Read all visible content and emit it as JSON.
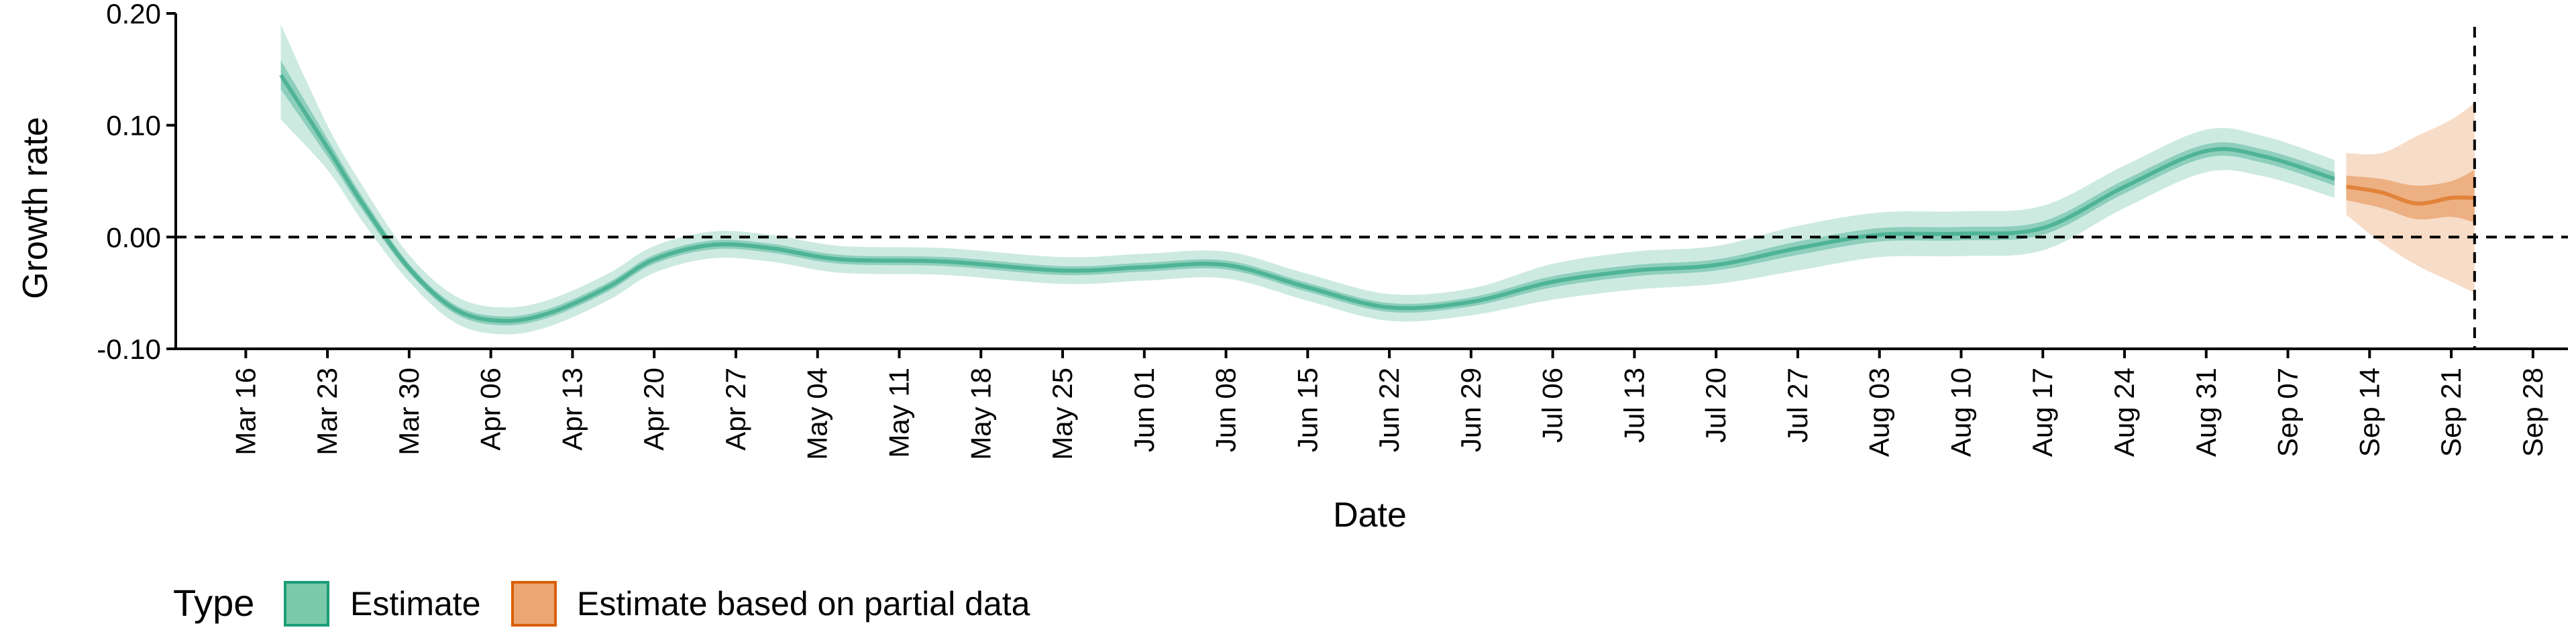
{
  "chart_data": {
    "type": "area",
    "title": "",
    "xlabel": "Date",
    "ylabel": "Growth rate",
    "ylim": [
      -0.1,
      0.2
    ],
    "yticks": [
      -0.1,
      0.0,
      0.1,
      0.2
    ],
    "ytick_labels": [
      "-0.10",
      "0.00",
      "0.10",
      "0.20"
    ],
    "xlim": [
      "2020-03-10",
      "2020-10-01"
    ],
    "xticks": [
      "2020-03-16",
      "2020-03-23",
      "2020-03-30",
      "2020-04-06",
      "2020-04-13",
      "2020-04-20",
      "2020-04-27",
      "2020-05-04",
      "2020-05-11",
      "2020-05-18",
      "2020-05-25",
      "2020-06-01",
      "2020-06-08",
      "2020-06-15",
      "2020-06-22",
      "2020-06-29",
      "2020-07-06",
      "2020-07-13",
      "2020-07-20",
      "2020-07-27",
      "2020-08-03",
      "2020-08-10",
      "2020-08-17",
      "2020-08-24",
      "2020-08-31",
      "2020-09-07",
      "2020-09-14",
      "2020-09-21",
      "2020-09-28"
    ],
    "xtick_labels": [
      "Mar 16",
      "Mar 23",
      "Mar 30",
      "Apr 06",
      "Apr 13",
      "Apr 20",
      "Apr 27",
      "May 04",
      "May 11",
      "May 18",
      "May 25",
      "Jun 01",
      "Jun 08",
      "Jun 15",
      "Jun 22",
      "Jun 29",
      "Jul 06",
      "Jul 13",
      "Jul 20",
      "Jul 27",
      "Aug 03",
      "Aug 10",
      "Aug 17",
      "Aug 24",
      "Aug 31",
      "Sep 07",
      "Sep 14",
      "Sep 21",
      "Sep 28"
    ],
    "reference_lines": {
      "y": 0.0,
      "x": "2020-09-23"
    },
    "grid": false,
    "legend": {
      "title": "Type",
      "position": "bottom-left",
      "entries": [
        {
          "label": "Estimate",
          "color": "#1b9e77"
        },
        {
          "label": "Estimate based on partial data",
          "color": "#d95f02"
        }
      ]
    },
    "series": [
      {
        "name": "Estimate",
        "color": "#1b9e77",
        "points": [
          {
            "date": "2020-03-19",
            "mid": 0.145,
            "lo50": 0.132,
            "hi50": 0.158,
            "lo90": 0.105,
            "hi90": 0.19
          },
          {
            "date": "2020-03-23",
            "mid": 0.08,
            "lo50": 0.072,
            "hi50": 0.088,
            "lo90": 0.06,
            "hi90": 0.1
          },
          {
            "date": "2020-03-26",
            "mid": 0.03,
            "lo50": 0.024,
            "hi50": 0.036,
            "lo90": 0.014,
            "hi90": 0.046
          },
          {
            "date": "2020-03-30",
            "mid": -0.028,
            "lo50": -0.032,
            "hi50": -0.024,
            "lo90": -0.04,
            "hi90": -0.016
          },
          {
            "date": "2020-04-03",
            "mid": -0.065,
            "lo50": -0.069,
            "hi50": -0.061,
            "lo90": -0.077,
            "hi90": -0.053
          },
          {
            "date": "2020-04-07",
            "mid": -0.075,
            "lo50": -0.079,
            "hi50": -0.071,
            "lo90": -0.087,
            "hi90": -0.063
          },
          {
            "date": "2020-04-11",
            "mid": -0.068,
            "lo50": -0.072,
            "hi50": -0.064,
            "lo90": -0.08,
            "hi90": -0.056
          },
          {
            "date": "2020-04-16",
            "mid": -0.045,
            "lo50": -0.049,
            "hi50": -0.041,
            "lo90": -0.057,
            "hi90": -0.033
          },
          {
            "date": "2020-04-20",
            "mid": -0.02,
            "lo50": -0.024,
            "hi50": -0.016,
            "lo90": -0.032,
            "hi90": -0.008
          },
          {
            "date": "2020-04-25",
            "mid": -0.007,
            "lo50": -0.011,
            "hi50": -0.003,
            "lo90": -0.019,
            "hi90": 0.005
          },
          {
            "date": "2020-04-30",
            "mid": -0.01,
            "lo50": -0.014,
            "hi50": -0.006,
            "lo90": -0.022,
            "hi90": 0.002
          },
          {
            "date": "2020-05-06",
            "mid": -0.02,
            "lo50": -0.024,
            "hi50": -0.016,
            "lo90": -0.032,
            "hi90": -0.008
          },
          {
            "date": "2020-05-15",
            "mid": -0.022,
            "lo50": -0.026,
            "hi50": -0.018,
            "lo90": -0.034,
            "hi90": -0.01
          },
          {
            "date": "2020-05-25",
            "mid": -0.03,
            "lo50": -0.034,
            "hi50": -0.026,
            "lo90": -0.042,
            "hi90": -0.018
          },
          {
            "date": "2020-06-01",
            "mid": -0.027,
            "lo50": -0.031,
            "hi50": -0.023,
            "lo90": -0.039,
            "hi90": -0.015
          },
          {
            "date": "2020-06-08",
            "mid": -0.025,
            "lo50": -0.029,
            "hi50": -0.021,
            "lo90": -0.037,
            "hi90": -0.013
          },
          {
            "date": "2020-06-15",
            "mid": -0.045,
            "lo50": -0.049,
            "hi50": -0.041,
            "lo90": -0.057,
            "hi90": -0.033
          },
          {
            "date": "2020-06-22",
            "mid": -0.063,
            "lo50": -0.067,
            "hi50": -0.059,
            "lo90": -0.075,
            "hi90": -0.051
          },
          {
            "date": "2020-06-29",
            "mid": -0.058,
            "lo50": -0.062,
            "hi50": -0.054,
            "lo90": -0.07,
            "hi90": -0.046
          },
          {
            "date": "2020-07-06",
            "mid": -0.04,
            "lo50": -0.045,
            "hi50": -0.035,
            "lo90": -0.056,
            "hi90": -0.024
          },
          {
            "date": "2020-07-13",
            "mid": -0.03,
            "lo50": -0.035,
            "hi50": -0.025,
            "lo90": -0.047,
            "hi90": -0.013
          },
          {
            "date": "2020-07-20",
            "mid": -0.025,
            "lo50": -0.03,
            "hi50": -0.02,
            "lo90": -0.042,
            "hi90": -0.008
          },
          {
            "date": "2020-07-27",
            "mid": -0.01,
            "lo50": -0.016,
            "hi50": -0.004,
            "lo90": -0.03,
            "hi90": 0.01
          },
          {
            "date": "2020-08-03",
            "mid": 0.002,
            "lo50": -0.004,
            "hi50": 0.008,
            "lo90": -0.018,
            "hi90": 0.022
          },
          {
            "date": "2020-08-10",
            "mid": 0.003,
            "lo50": -0.003,
            "hi50": 0.009,
            "lo90": -0.017,
            "hi90": 0.023
          },
          {
            "date": "2020-08-17",
            "mid": 0.008,
            "lo50": 0.002,
            "hi50": 0.014,
            "lo90": -0.012,
            "hi90": 0.028
          },
          {
            "date": "2020-08-24",
            "mid": 0.045,
            "lo50": 0.039,
            "hi50": 0.051,
            "lo90": 0.026,
            "hi90": 0.064
          },
          {
            "date": "2020-08-31",
            "mid": 0.077,
            "lo50": 0.071,
            "hi50": 0.083,
            "lo90": 0.058,
            "hi90": 0.096
          },
          {
            "date": "2020-09-05",
            "mid": 0.072,
            "lo50": 0.066,
            "hi50": 0.078,
            "lo90": 0.054,
            "hi90": 0.09
          },
          {
            "date": "2020-09-11",
            "mid": 0.052,
            "lo50": 0.046,
            "hi50": 0.058,
            "lo90": 0.035,
            "hi90": 0.069
          }
        ]
      },
      {
        "name": "Estimate based on partial data",
        "color": "#d95f02",
        "points": [
          {
            "date": "2020-09-12",
            "mid": 0.045,
            "lo50": 0.033,
            "hi50": 0.055,
            "lo90": 0.02,
            "hi90": 0.075
          },
          {
            "date": "2020-09-15",
            "mid": 0.04,
            "lo50": 0.026,
            "hi50": 0.052,
            "lo90": -0.005,
            "hi90": 0.075
          },
          {
            "date": "2020-09-18",
            "mid": 0.03,
            "lo50": 0.016,
            "hi50": 0.046,
            "lo90": -0.025,
            "hi90": 0.09
          },
          {
            "date": "2020-09-21",
            "mid": 0.035,
            "lo50": 0.018,
            "hi50": 0.05,
            "lo90": -0.04,
            "hi90": 0.105
          },
          {
            "date": "2020-09-23",
            "mid": 0.035,
            "lo50": 0.013,
            "hi50": 0.06,
            "lo90": -0.05,
            "hi90": 0.12
          }
        ]
      }
    ]
  }
}
